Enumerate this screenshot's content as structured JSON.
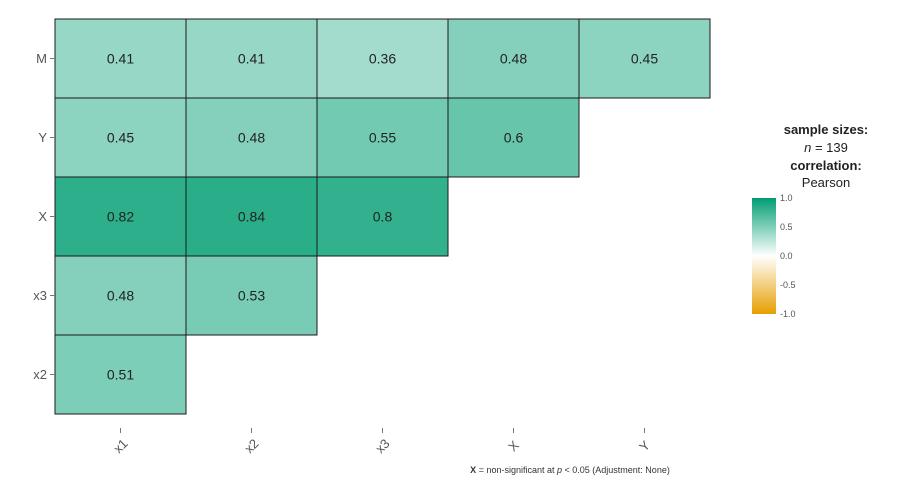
{
  "chart_data": {
    "type": "heatmap",
    "title": "",
    "xlabel": "",
    "ylabel": "",
    "rows": [
      "M",
      "Y",
      "X",
      "x3",
      "x2"
    ],
    "columns": [
      "x1",
      "x2",
      "x3",
      "X",
      "Y"
    ],
    "x_tick_labels": [
      "x1",
      "x2",
      "x3",
      "X",
      "Y"
    ],
    "y_tick_labels": [
      "M",
      "Y",
      "X",
      "x3",
      "x2"
    ],
    "cells": [
      {
        "row": "M",
        "col": "x1",
        "value": 0.41,
        "label": "0.41"
      },
      {
        "row": "M",
        "col": "x2",
        "value": 0.41,
        "label": "0.41"
      },
      {
        "row": "M",
        "col": "x3",
        "value": 0.36,
        "label": "0.36"
      },
      {
        "row": "M",
        "col": "X",
        "value": 0.48,
        "label": "0.48"
      },
      {
        "row": "M",
        "col": "Y",
        "value": 0.45,
        "label": "0.45"
      },
      {
        "row": "Y",
        "col": "x1",
        "value": 0.45,
        "label": "0.45"
      },
      {
        "row": "Y",
        "col": "x2",
        "value": 0.48,
        "label": "0.48"
      },
      {
        "row": "Y",
        "col": "x3",
        "value": 0.55,
        "label": "0.55"
      },
      {
        "row": "Y",
        "col": "X",
        "value": 0.6,
        "label": "0.6"
      },
      {
        "row": "X",
        "col": "x1",
        "value": 0.82,
        "label": "0.82"
      },
      {
        "row": "X",
        "col": "x2",
        "value": 0.84,
        "label": "0.84"
      },
      {
        "row": "X",
        "col": "x3",
        "value": 0.8,
        "label": "0.8"
      },
      {
        "row": "x3",
        "col": "x1",
        "value": 0.48,
        "label": "0.48"
      },
      {
        "row": "x3",
        "col": "x2",
        "value": 0.53,
        "label": "0.53"
      },
      {
        "row": "x2",
        "col": "x1",
        "value": 0.51,
        "label": "0.51"
      }
    ],
    "color_scale": {
      "low_color": "#E69F00",
      "mid_color": "#FFFFFF",
      "high_color": "#009E73",
      "range": [
        -1.0,
        1.0
      ],
      "ticks": [
        "1.0",
        "0.5",
        "0.0",
        "-0.5",
        "-1.0"
      ]
    },
    "legend": {
      "position": "right",
      "sample_sizes_title": "sample sizes:",
      "n_label": "n",
      "n_text": " = 139",
      "correlation_title": "correlation:",
      "correlation_method": "Pearson"
    },
    "caption": {
      "marker": "X",
      "text": " = non-significant at ",
      "p_label": "p",
      "p_text": " < 0.05 (Adjustment: None)"
    }
  }
}
